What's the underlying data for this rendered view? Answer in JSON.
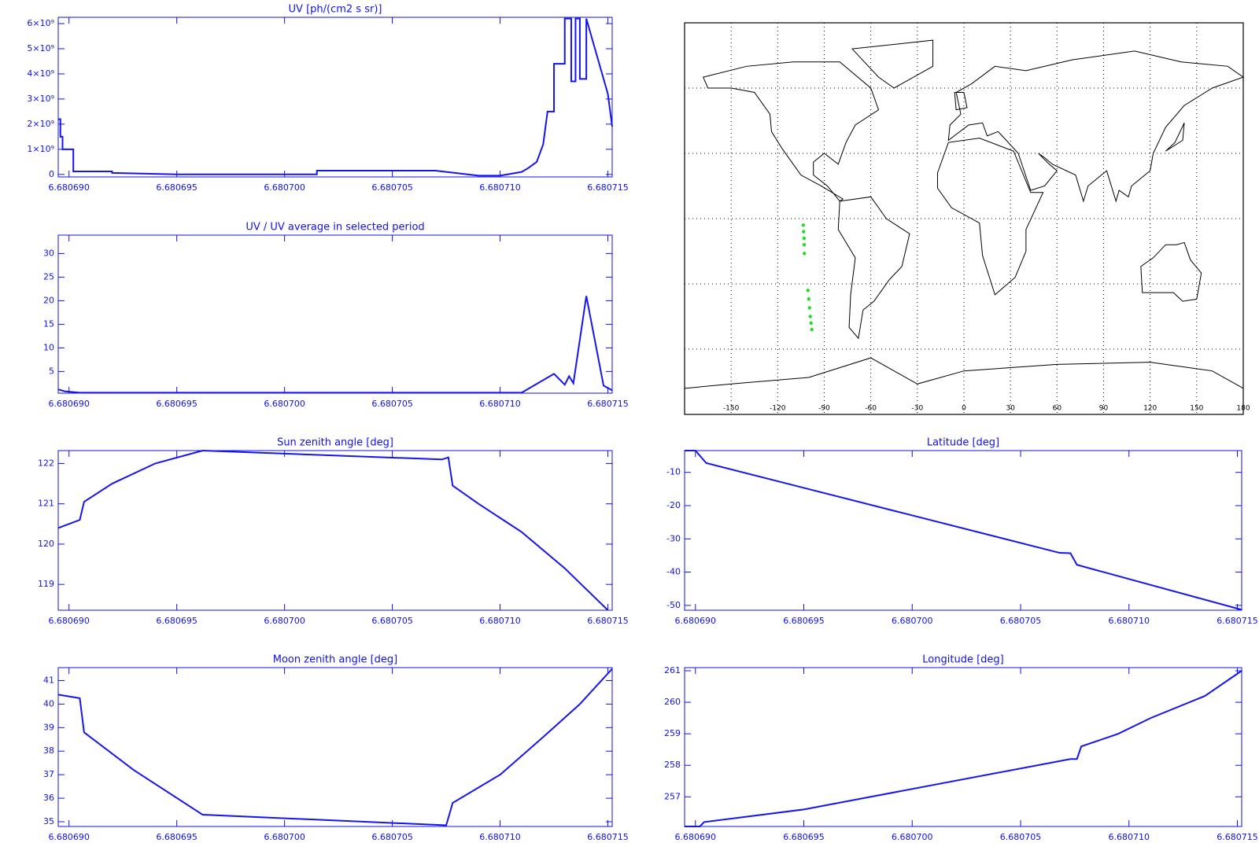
{
  "chart_data": [
    {
      "type": "line",
      "title": "UV [ph/(cm2 s sr)]",
      "color": "#1515f0",
      "xlim": [
        6.6806895,
        6.6807152
      ],
      "ylim": [
        -100000000,
        6250000000
      ],
      "xticks": [
        {
          "value": 6.68069,
          "label": "6.680690"
        },
        {
          "value": 6.680695,
          "label": "6.680695"
        },
        {
          "value": 6.6807,
          "label": "6.680700"
        },
        {
          "value": 6.680705,
          "label": "6.680705"
        },
        {
          "value": 6.68071,
          "label": "6.680710"
        },
        {
          "value": 6.680715,
          "label": "6.680715"
        }
      ],
      "yticks": [
        0,
        {
          "value": 1000000000,
          "label": "1×10⁹"
        },
        {
          "value": 2000000000,
          "label": "2×10⁹"
        },
        {
          "value": 3000000000,
          "label": "3×10⁹"
        },
        {
          "value": 4000000000,
          "label": "4×10⁹"
        },
        {
          "value": 5000000000,
          "label": "5×10⁹"
        },
        {
          "value": 6000000000,
          "label": "6×10⁹"
        }
      ],
      "x": [
        6.6806895,
        6.6806896,
        6.6806896,
        6.6806897,
        6.6806897,
        6.6806902,
        6.6806902,
        6.680692,
        6.680692,
        6.680695,
        6.6807015,
        6.6807015,
        6.680707,
        6.680709,
        6.68071,
        6.680711,
        6.6807113,
        6.6807117,
        6.680712,
        6.6807122,
        6.6807125,
        6.6807125,
        6.680713,
        6.680713,
        6.6807133,
        6.6807133,
        6.6807135,
        6.6807135,
        6.6807137,
        6.6807137,
        6.680714,
        6.680714,
        6.680715,
        6.6807152
      ],
      "values": [
        2200000000,
        2200000000,
        1500000000,
        1500000000,
        1000000000,
        1000000000,
        120000000,
        120000000,
        60000000,
        0,
        0,
        150000000,
        150000000,
        -50000000,
        -50000000,
        100000000,
        250000000,
        500000000,
        1200000000,
        2500000000,
        2500000000,
        4400000000,
        4400000000,
        6200000000,
        6200000000,
        3700000000,
        3700000000,
        6200000000,
        6200000000,
        3800000000,
        3800000000,
        6200000000,
        3200000000,
        1900000000
      ]
    },
    {
      "type": "line",
      "title": "UV / UV average in selected period",
      "color": "#1515f0",
      "xlim": [
        6.6806895,
        6.6807152
      ],
      "ylim": [
        0.4,
        33.9
      ],
      "xticks": [
        {
          "value": 6.68069,
          "label": "6.680690"
        },
        {
          "value": 6.680695,
          "label": "6.680695"
        },
        {
          "value": 6.6807,
          "label": "6.680700"
        },
        {
          "value": 6.680705,
          "label": "6.680705"
        },
        {
          "value": 6.68071,
          "label": "6.680710"
        },
        {
          "value": 6.680715,
          "label": "6.680715"
        }
      ],
      "yticks": [
        5,
        10,
        15,
        20,
        25,
        30
      ],
      "x": [
        6.6806895,
        6.6806898,
        6.6806905,
        6.680711,
        6.6807125,
        6.680713,
        6.6807132,
        6.6807134,
        6.680714,
        6.6807148,
        6.6807152
      ],
      "values": [
        1.2,
        0.8,
        0.5,
        0.5,
        4.5,
        2.2,
        4,
        2.5,
        21,
        2,
        1
      ]
    },
    {
      "type": "line",
      "title": "Sun zenith angle [deg]",
      "color": "#1515f0",
      "xlim": [
        6.6806895,
        6.6807152
      ],
      "ylim": [
        118.36,
        122.32
      ],
      "xticks": [
        {
          "value": 6.68069,
          "label": "6.680690"
        },
        {
          "value": 6.680695,
          "label": "6.680695"
        },
        {
          "value": 6.6807,
          "label": "6.680700"
        },
        {
          "value": 6.680705,
          "label": "6.680705"
        },
        {
          "value": 6.68071,
          "label": "6.680710"
        },
        {
          "value": 6.680715,
          "label": "6.680715"
        }
      ],
      "yticks": [
        119,
        120,
        121,
        122
      ],
      "x": [
        6.6806895,
        6.6806905,
        6.6806907,
        6.680692,
        6.680694,
        6.6806962,
        6.6807073,
        6.6807076,
        6.6807078,
        6.680709,
        6.680711,
        6.680713,
        6.680715
      ],
      "values": [
        120.4,
        120.6,
        121.05,
        121.5,
        122.0,
        122.32,
        122.1,
        122.15,
        121.45,
        121.0,
        120.3,
        119.4,
        118.36
      ]
    },
    {
      "type": "line",
      "title": "Moon zenith angle [deg]",
      "color": "#1515f0",
      "xlim": [
        6.6806895,
        6.6807152
      ],
      "ylim": [
        34.8,
        41.55
      ],
      "xticks": [
        {
          "value": 6.68069,
          "label": "6.680690"
        },
        {
          "value": 6.680695,
          "label": "6.680695"
        },
        {
          "value": 6.6807,
          "label": "6.680700"
        },
        {
          "value": 6.680705,
          "label": "6.680705"
        },
        {
          "value": 6.68071,
          "label": "6.680710"
        },
        {
          "value": 6.680715,
          "label": "6.680715"
        }
      ],
      "yticks": [
        35,
        36,
        37,
        38,
        39,
        40,
        41
      ],
      "x": [
        6.6806895,
        6.6806905,
        6.6806907,
        6.680693,
        6.6806962,
        6.6807075,
        6.6807078,
        6.68071,
        6.680712,
        6.6807137,
        6.6807152
      ],
      "values": [
        40.4,
        40.25,
        38.8,
        37.2,
        35.3,
        34.85,
        35.8,
        37.0,
        38.6,
        40.0,
        41.5
      ]
    },
    {
      "type": "map",
      "color": "#22dd22",
      "xlim": [
        -180,
        180
      ],
      "ylim": [
        -90,
        90
      ],
      "xticks": [
        -150,
        -120,
        -90,
        -60,
        -30,
        0,
        30,
        60,
        90,
        120,
        150,
        180
      ],
      "yticks": [
        -60,
        -30,
        0,
        30,
        60
      ],
      "grid": true,
      "x": [
        -103.5,
        -103.3,
        -103,
        -102.9,
        -102.8,
        -100.5,
        -100,
        -99.5,
        -99,
        -98.5,
        -98
      ],
      "values": [
        -3,
        -6,
        -9,
        -12,
        -16,
        -33,
        -37,
        -41,
        -45,
        -48,
        -51
      ]
    },
    {
      "type": "line",
      "title": "Latitude [deg]",
      "color": "#1515f0",
      "xlim": [
        6.6806895,
        6.6807152
      ],
      "ylim": [
        -51.45,
        -3.45
      ],
      "xticks": [
        {
          "value": 6.68069,
          "label": "6.680690"
        },
        {
          "value": 6.680695,
          "label": "6.680695"
        },
        {
          "value": 6.6807,
          "label": "6.680700"
        },
        {
          "value": 6.680705,
          "label": "6.680705"
        },
        {
          "value": 6.68071,
          "label": "6.680710"
        },
        {
          "value": 6.680715,
          "label": "6.680715"
        }
      ],
      "yticks": [
        -50,
        -40,
        -30,
        -20,
        -10
      ],
      "x": [
        6.6806895,
        6.68069,
        6.6806905,
        6.6807068,
        6.6807073,
        6.6807076,
        6.6807152
      ],
      "values": [
        -3.45,
        -3.45,
        -7.2,
        -34.2,
        -34.3,
        -37.8,
        -51.3
      ]
    },
    {
      "type": "line",
      "title": "Longitude [deg]",
      "color": "#1515f0",
      "xlim": [
        6.6806895,
        6.6807152
      ],
      "ylim": [
        256.06,
        261.1
      ],
      "xticks": [
        {
          "value": 6.68069,
          "label": "6.680690"
        },
        {
          "value": 6.680695,
          "label": "6.680695"
        },
        {
          "value": 6.6807,
          "label": "6.680700"
        },
        {
          "value": 6.680705,
          "label": "6.680705"
        },
        {
          "value": 6.68071,
          "label": "6.680710"
        },
        {
          "value": 6.680715,
          "label": "6.680715"
        }
      ],
      "yticks": [
        257,
        258,
        259,
        260,
        261
      ],
      "x": [
        6.6806895,
        6.6806902,
        6.6806904,
        6.680695,
        6.6807073,
        6.6807076,
        6.6807078,
        6.6807095,
        6.680711,
        6.6807135,
        6.6807152
      ],
      "values": [
        256.06,
        256.06,
        256.2,
        256.6,
        258.2,
        258.2,
        258.6,
        259.0,
        259.5,
        260.2,
        261.0
      ]
    }
  ]
}
